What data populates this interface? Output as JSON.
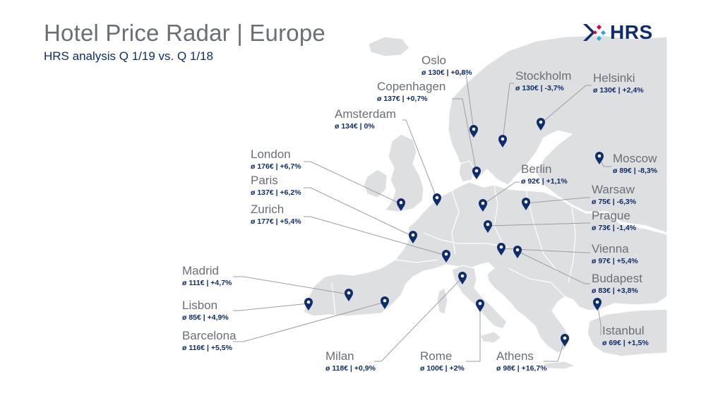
{
  "header": {
    "title": "Hotel Price Radar | Europe",
    "subtitle": "HRS analysis Q 1/19 vs. Q 1/18"
  },
  "logo": {
    "text": "HRS",
    "colors": [
      "#0d2d6b",
      "#e4003a",
      "#2aa7df"
    ]
  },
  "colors": {
    "land": "#dedfe1",
    "border": "#ffffff",
    "pin": "#0d2d6b",
    "leader": "#9a9ea4",
    "name": "#6a6f76",
    "price": "#0d2d6b"
  },
  "cities": [
    {
      "id": "oslo",
      "name": "Oslo",
      "price": "ø 130€ | +0,8%"
    },
    {
      "id": "copenhagen",
      "name": "Copenhagen",
      "price": "ø 137€ | +0,7%"
    },
    {
      "id": "stockholm",
      "name": "Stockholm",
      "price": "ø 130€ | -3,7%"
    },
    {
      "id": "helsinki",
      "name": "Helsinki",
      "price": "ø 130€ | +2,4%"
    },
    {
      "id": "amsterdam",
      "name": "Amsterdam",
      "price": "ø 134€ | 0%"
    },
    {
      "id": "london",
      "name": "London",
      "price": "ø 176€ | +6,7%"
    },
    {
      "id": "paris",
      "name": "Paris",
      "price": "ø 137€ | +6,2%"
    },
    {
      "id": "zurich",
      "name": "Zurich",
      "price": "ø 177€ | +5,4%"
    },
    {
      "id": "berlin",
      "name": "Berlin",
      "price": "ø 92€ | +1,1%"
    },
    {
      "id": "moscow",
      "name": "Moscow",
      "price": "ø 89€ | -8,3%"
    },
    {
      "id": "warsaw",
      "name": "Warsaw",
      "price": "ø 75€ | -6,3%"
    },
    {
      "id": "prague",
      "name": "Prague",
      "price": "ø 73€ | -1,4%"
    },
    {
      "id": "vienna",
      "name": "Vienna",
      "price": "ø 97€ | +5,4%"
    },
    {
      "id": "budapest",
      "name": "Budapest",
      "price": "ø 83€ | +3,8%"
    },
    {
      "id": "madrid",
      "name": "Madrid",
      "price": "ø 111€ | +4,7%"
    },
    {
      "id": "lisbon",
      "name": "Lisbon",
      "price": "ø 85€ | +4,9%"
    },
    {
      "id": "barcelona",
      "name": "Barcelona",
      "price": "ø 116€ | +5,5%"
    },
    {
      "id": "istanbul",
      "name": "Istanbul",
      "price": "ø 69€ | +1,5%"
    },
    {
      "id": "milan",
      "name": "Milan",
      "price": "ø 118€ | +0,9%"
    },
    {
      "id": "rome",
      "name": "Rome",
      "price": "ø 100€ | +2%"
    },
    {
      "id": "athens",
      "name": "Athens",
      "price": "ø 98€ | +16,7%"
    }
  ]
}
